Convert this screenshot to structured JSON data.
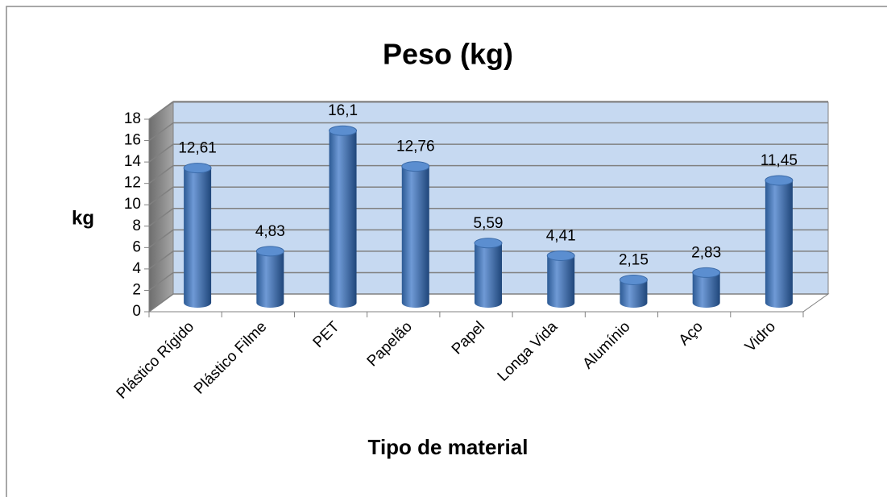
{
  "chart_data": {
    "type": "bar",
    "title": "Peso (kg)",
    "y_label": "kg",
    "x_label": "Tipo de material",
    "categories": [
      "Plástico Rígido",
      "Plástico Filme",
      "PET",
      "Papelão",
      "Papel",
      "Longa Vida",
      "Alumínio",
      "Aço",
      "Vidro"
    ],
    "values": [
      12.61,
      4.83,
      16.1,
      12.76,
      5.59,
      4.41,
      2.15,
      2.83,
      11.45
    ],
    "value_labels": [
      "12,61",
      "4,83",
      "16,1",
      "12,76",
      "5,59",
      "4,41",
      "2,15",
      "2,83",
      "11,45"
    ],
    "color": "#4f81bd",
    "ylim": [
      0,
      18
    ],
    "yticks": [
      0,
      2,
      4,
      6,
      8,
      10,
      12,
      14,
      16,
      18
    ],
    "grid": true
  }
}
